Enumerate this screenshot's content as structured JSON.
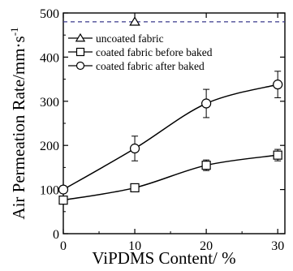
{
  "chart_data": {
    "type": "line",
    "xlabel": "ViPDMS Content/ %",
    "ylabel": "Air Permeation Rate/mm·s",
    "ylabel_superscript": "-1",
    "xlim": [
      0,
      31
    ],
    "ylim": [
      0,
      500
    ],
    "x_ticks": [
      0,
      10,
      20,
      30
    ],
    "y_ticks": [
      0,
      100,
      200,
      300,
      400,
      500
    ],
    "grid": false,
    "legend_placement": "top-left",
    "series": [
      {
        "name": "uncoated fabric",
        "marker": "triangle",
        "style": "dashed-reference",
        "color": "#3a3a8c",
        "x": [
          10
        ],
        "values": [
          480
        ],
        "reference_y": 480
      },
      {
        "name": "coated fabric before baked",
        "marker": "square",
        "style": "smooth-line",
        "color": "#000000",
        "x": [
          0,
          10,
          20,
          30
        ],
        "values": [
          76,
          104,
          155,
          178
        ],
        "errors": [
          6,
          9,
          12,
          13
        ]
      },
      {
        "name": "coated fabric after baked",
        "marker": "circle",
        "style": "smooth-line",
        "color": "#000000",
        "x": [
          0,
          10,
          20,
          30
        ],
        "values": [
          100,
          193,
          295,
          338
        ],
        "errors": [
          8,
          28,
          32,
          30
        ]
      }
    ]
  }
}
